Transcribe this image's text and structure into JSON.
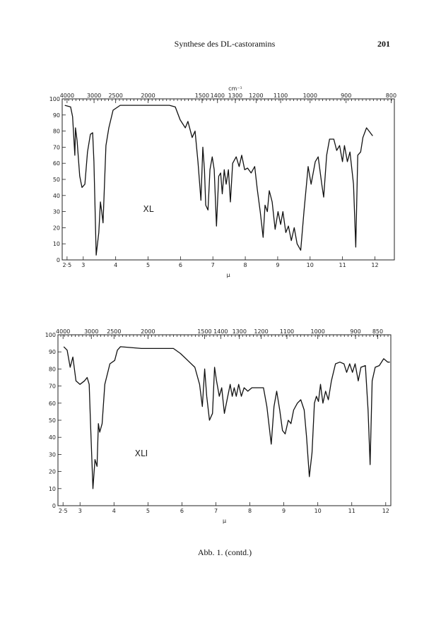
{
  "header": {
    "title": "Synthese des DL-castoramins",
    "page_number": "201"
  },
  "caption": "Abb. 1. (contd.)",
  "chart_data": [
    {
      "type": "line",
      "annotation": "XL",
      "x_label": "μ",
      "x2_label": "cm⁻¹",
      "color": "#111111",
      "xlim": [
        2.35,
        12.6
      ],
      "ylim": [
        0,
        100
      ],
      "xticks": [
        {
          "value": 2.5,
          "label": "2·5"
        },
        3,
        4,
        5,
        6,
        7,
        8,
        9,
        10,
        11,
        12
      ],
      "x2ticks": [
        4000,
        3000,
        2500,
        2000,
        1500,
        1400,
        1300,
        1200,
        1100,
        1000,
        900,
        800
      ],
      "yticks": [
        0,
        10,
        20,
        30,
        40,
        50,
        60,
        70,
        80,
        90,
        100
      ],
      "x": [
        2.43,
        2.61,
        2.67,
        2.74,
        2.76,
        2.81,
        2.89,
        2.96,
        3.05,
        3.13,
        3.22,
        3.29,
        3.33,
        3.4,
        3.48,
        3.53,
        3.57,
        3.61,
        3.7,
        3.79,
        3.92,
        4.14,
        4.79,
        5.12,
        5.66,
        5.84,
        5.99,
        6.15,
        6.23,
        6.36,
        6.45,
        6.54,
        6.63,
        6.69,
        6.74,
        6.78,
        6.85,
        6.91,
        6.98,
        7.04,
        7.11,
        7.18,
        7.24,
        7.29,
        7.35,
        7.41,
        7.48,
        7.54,
        7.61,
        7.72,
        7.81,
        7.89,
        7.98,
        8.07,
        8.18,
        8.29,
        8.37,
        8.46,
        8.55,
        8.61,
        8.68,
        8.74,
        8.83,
        8.92,
        9.01,
        9.09,
        9.16,
        9.25,
        9.33,
        9.42,
        9.51,
        9.6,
        9.71,
        9.81,
        9.94,
        10.03,
        10.16,
        10.25,
        10.36,
        10.42,
        10.51,
        10.6,
        10.73,
        10.82,
        10.91,
        11.0,
        11.06,
        11.15,
        11.23,
        11.34,
        11.41,
        11.47,
        11.56,
        11.63,
        11.74,
        11.82,
        11.93
      ],
      "values": [
        96,
        95,
        89,
        65,
        82,
        74,
        52,
        45,
        47,
        67,
        78,
        79,
        61,
        3,
        17,
        36,
        30,
        23,
        71,
        82,
        93,
        96,
        96,
        96,
        96,
        95,
        87,
        82,
        86,
        76,
        80,
        61,
        37,
        70,
        56,
        34,
        31,
        56,
        64,
        56,
        21,
        52,
        54,
        41,
        56,
        47,
        56,
        36,
        60,
        64,
        58,
        65,
        56,
        57,
        54,
        58,
        44,
        30,
        14,
        34,
        30,
        43,
        36,
        19,
        30,
        22,
        30,
        17,
        21,
        12,
        20,
        10,
        6,
        30,
        58,
        47,
        61,
        64,
        47,
        39,
        65,
        75,
        75,
        68,
        71,
        61,
        71,
        61,
        67,
        47,
        8,
        65,
        67,
        76,
        82,
        80,
        77
      ]
    },
    {
      "type": "line",
      "annotation": "XLI",
      "x_label": "μ",
      "color": "#111111",
      "xlim": [
        2.35,
        12.15
      ],
      "ylim": [
        0,
        100
      ],
      "xticks": [
        {
          "value": 2.5,
          "label": "2·5"
        },
        3,
        4,
        5,
        6,
        7,
        8,
        9,
        10,
        11,
        12
      ],
      "x2ticks": [
        4000,
        3000,
        2500,
        2000,
        1500,
        1400,
        1300,
        1200,
        1100,
        1000,
        900,
        850
      ],
      "yticks": [
        0,
        10,
        20,
        30,
        40,
        50,
        60,
        70,
        80,
        90,
        100
      ],
      "x": [
        2.52,
        2.62,
        2.71,
        2.79,
        2.88,
        3.0,
        3.13,
        3.21,
        3.27,
        3.31,
        3.38,
        3.44,
        3.5,
        3.54,
        3.58,
        3.65,
        3.73,
        3.88,
        4.02,
        4.1,
        4.19,
        4.81,
        5.44,
        5.75,
        5.96,
        6.17,
        6.38,
        6.52,
        6.6,
        6.67,
        6.73,
        6.81,
        6.9,
        6.96,
        7.02,
        7.1,
        7.17,
        7.25,
        7.33,
        7.42,
        7.48,
        7.54,
        7.6,
        7.67,
        7.75,
        7.83,
        7.94,
        8.06,
        8.25,
        8.4,
        8.5,
        8.63,
        8.71,
        8.79,
        8.88,
        8.96,
        9.04,
        9.13,
        9.21,
        9.29,
        9.4,
        9.5,
        9.6,
        9.67,
        9.75,
        9.83,
        9.9,
        9.96,
        10.02,
        10.08,
        10.15,
        10.23,
        10.31,
        10.4,
        10.52,
        10.65,
        10.77,
        10.85,
        10.94,
        11.02,
        11.1,
        11.19,
        11.27,
        11.4,
        11.48,
        11.54,
        11.6,
        11.69,
        11.81,
        11.94,
        12.06,
        12.12
      ],
      "values": [
        93,
        91,
        81,
        87,
        73,
        71,
        73,
        75,
        71,
        48,
        10,
        27,
        23,
        48,
        43,
        48,
        71,
        83,
        85,
        91,
        93,
        92,
        92,
        92,
        89,
        85,
        81,
        71,
        58,
        80,
        64,
        50,
        54,
        81,
        73,
        64,
        69,
        54,
        62,
        71,
        64,
        69,
        64,
        71,
        64,
        69,
        67,
        69,
        69,
        69,
        58,
        36,
        58,
        67,
        56,
        44,
        42,
        50,
        48,
        56,
        60,
        62,
        56,
        40,
        17,
        31,
        60,
        64,
        61,
        71,
        60,
        67,
        62,
        73,
        83,
        84,
        83,
        78,
        83,
        78,
        83,
        73,
        81,
        82,
        56,
        24,
        73,
        81,
        82,
        86,
        84,
        84
      ]
    }
  ]
}
